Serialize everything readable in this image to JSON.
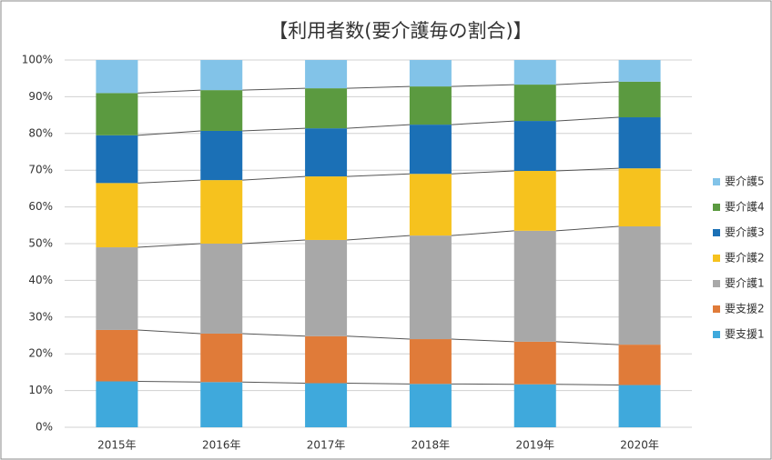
{
  "chart_data": {
    "type": "stacked_bar_100",
    "title": "【利用者数(要介護毎の割合)】",
    "categories": [
      "2015年",
      "2016年",
      "2017年",
      "2018年",
      "2019年",
      "2020年"
    ],
    "series": [
      {
        "name": "要支援1",
        "color": "#3fa9dc",
        "values": [
          12.5,
          12.3,
          12,
          11.8,
          11.7,
          11.5
        ]
      },
      {
        "name": "要支援2",
        "color": "#e07b39",
        "values": [
          14,
          13.2,
          12.8,
          12.2,
          11.6,
          11
        ]
      },
      {
        "name": "要介護1",
        "color": "#a8a8a8",
        "values": [
          22.5,
          24.5,
          26.2,
          28.2,
          30.2,
          32.2
        ]
      },
      {
        "name": "要介護2",
        "color": "#f6c21e",
        "values": [
          17.5,
          17.3,
          17.3,
          16.8,
          16.3,
          15.8
        ]
      },
      {
        "name": "要介護3",
        "color": "#1b70b6",
        "values": [
          13,
          13.4,
          13.1,
          13.4,
          13.6,
          13.9
        ]
      },
      {
        "name": "要介護4",
        "color": "#5b9a40",
        "values": [
          11.5,
          11.1,
          10.9,
          10.4,
          9.9,
          9.7
        ]
      },
      {
        "name": "要介護5",
        "color": "#82c3e8",
        "values": [
          9,
          8.2,
          7.7,
          7.2,
          6.7,
          5.9
        ]
      }
    ],
    "ylim": [
      0,
      100
    ],
    "yticks": [
      {
        "value": 0,
        "label": "0%"
      },
      {
        "value": 10,
        "label": "10%"
      },
      {
        "value": 20,
        "label": "20%"
      },
      {
        "value": 30,
        "label": "30%"
      },
      {
        "value": 40,
        "label": "40%"
      },
      {
        "value": 50,
        "label": "50%"
      },
      {
        "value": 60,
        "label": "60%"
      },
      {
        "value": 70,
        "label": "70%"
      },
      {
        "value": 80,
        "label": "80%"
      },
      {
        "value": 90,
        "label": "90%"
      },
      {
        "value": 100,
        "label": "100%"
      }
    ],
    "grid": true,
    "legend": "right"
  }
}
